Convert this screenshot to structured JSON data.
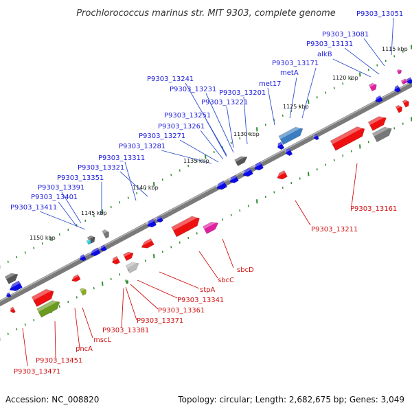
{
  "title": "Prochlorococcus marinus str. MIT 9303, complete genome",
  "footer": {
    "accession": "Accession: NC_008820",
    "summary": "Topology: circular; Length: 2,682,675 bp; Genes: 3,049"
  },
  "colors": {
    "axis": "#808080",
    "tick": "#2e8b2e",
    "blue_gene": "#0a0ae6",
    "red_gene": "#ee1010",
    "label_blue": "#1a1adc",
    "label_red": "#d01010",
    "leader_blue": "#2f4fd0",
    "leader_red": "#d01010"
  },
  "scale_labels": [
    "1115 kbp",
    "1120 kbp",
    "1125 kbp",
    "1130 kbp",
    "1135 kbp",
    "1140 kbp",
    "1145 kbp",
    "1150 kbp"
  ],
  "top_labels": [
    "P9303_13051",
    "P9303_13081",
    "P9303_13131",
    "alkB",
    "P9303_13171",
    "metA",
    "met17",
    "P9303_13201",
    "P9303_13221",
    "P9303_13231",
    "P9303_13241",
    "P9303_13251",
    "P9303_13261",
    "P9303_13271",
    "P9303_13281",
    "P9303_13311",
    "P9303_13321",
    "P9303_13351",
    "P9303_13391",
    "P9303_13401",
    "P9303_13411"
  ],
  "bottom_labels": [
    "P9303_13161",
    "P9303_13211",
    "sbcD",
    "sbcC",
    "stpA",
    "P9303_13341",
    "P9303_13361",
    "P9303_13371",
    "P9303_13381",
    "mscL",
    "pncA",
    "P9303_13451",
    "P9303_13471"
  ]
}
